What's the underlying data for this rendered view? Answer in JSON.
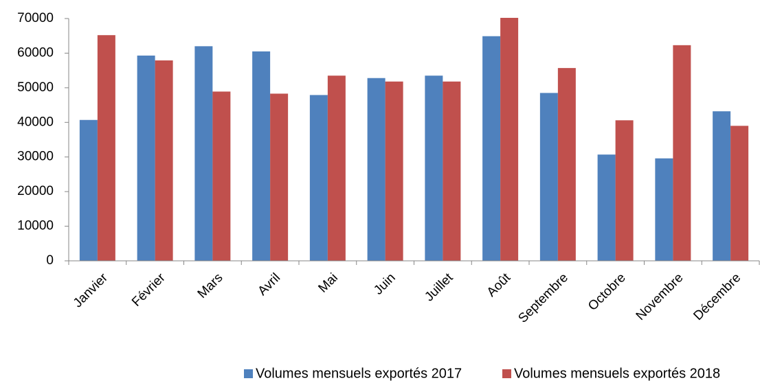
{
  "chart_data": {
    "type": "bar",
    "categories": [
      "Janvier",
      "Février",
      "Mars",
      "Avril",
      "Mai",
      "Juin",
      "Juillet",
      "Août",
      "Septembre",
      "Octobre",
      "Novembre",
      "Décembre"
    ],
    "series": [
      {
        "name": "Volumes mensuels exportés 2017",
        "color": "#4f81bd",
        "values": [
          40700,
          59300,
          62000,
          60500,
          47900,
          52800,
          53500,
          64900,
          48500,
          30700,
          29600,
          43200
        ]
      },
      {
        "name": "Volumes mensuels exportés 2018",
        "color": "#c0504d",
        "values": [
          65200,
          57900,
          48900,
          48300,
          53500,
          51800,
          51800,
          70200,
          55700,
          40600,
          62300,
          39000
        ]
      }
    ],
    "ylim": [
      0,
      70000
    ],
    "yticks": [
      0,
      10000,
      20000,
      30000,
      40000,
      50000,
      60000,
      70000
    ],
    "grid": false,
    "legend": "bottom"
  }
}
